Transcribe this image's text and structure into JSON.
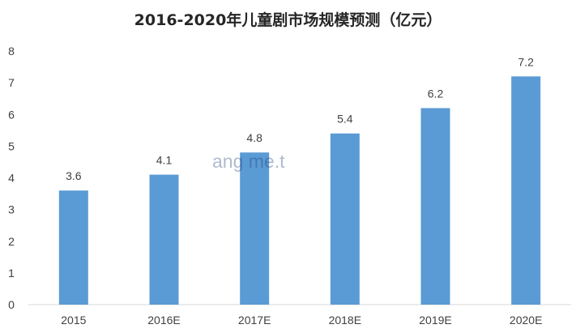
{
  "chart_data": {
    "type": "bar",
    "title": "2016-2020年儿童剧市场规模预测（亿元）",
    "categories": [
      "2015",
      "2016E",
      "2017E",
      "2018E",
      "2019E",
      "2020E"
    ],
    "values": [
      3.6,
      4.1,
      4.8,
      5.4,
      6.2,
      7.2
    ],
    "data_labels": [
      "3.6",
      "4.1",
      "4.8",
      "5.4",
      "6.2",
      "7.2"
    ],
    "ylim": [
      0,
      8
    ],
    "yticks": [
      "0",
      "1",
      "2",
      "3",
      "4",
      "5",
      "6",
      "7",
      "8"
    ],
    "xlabel": "",
    "ylabel": "",
    "grid": false,
    "legend": "none",
    "bar_color": "#5b9bd5",
    "axis_color": "#d9d9d9",
    "text_color": "#404040"
  },
  "watermark": "ang me.t"
}
